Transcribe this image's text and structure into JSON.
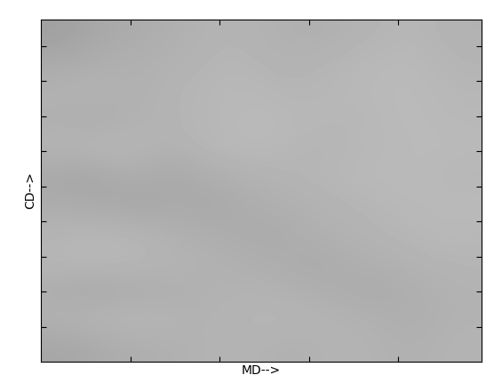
{
  "chart_data": {
    "type": "heatmap",
    "x_label": "MD-->",
    "y_label": "CD-->",
    "xlim": [
      0,
      4.93
    ],
    "ylim": [
      0,
      9.75
    ],
    "xticks": [
      1,
      2,
      3,
      4
    ],
    "yticks": [
      1,
      2,
      3,
      4,
      5,
      6,
      7,
      8,
      9
    ],
    "tick_labels": false,
    "color": "gray",
    "color_range": [
      0,
      255
    ],
    "cells": [
      [
        160,
        165,
        170,
        172,
        175,
        178,
        180,
        178,
        176,
        175,
        178,
        180,
        182,
        180,
        178
      ],
      [
        170,
        172,
        175,
        176,
        178,
        180,
        182,
        180,
        178,
        180,
        182,
        184,
        185,
        182,
        180
      ],
      [
        178,
        180,
        178,
        176,
        180,
        182,
        184,
        183,
        181,
        182,
        184,
        185,
        186,
        184,
        182
      ],
      [
        175,
        172,
        174,
        178,
        180,
        182,
        184,
        186,
        184,
        183,
        182,
        184,
        186,
        185,
        184
      ],
      [
        180,
        182,
        184,
        180,
        178,
        182,
        184,
        185,
        182,
        180,
        182,
        184,
        185,
        186,
        185
      ],
      [
        168,
        165,
        170,
        172,
        168,
        172,
        176,
        178,
        180,
        182,
        184,
        185,
        186,
        184,
        182
      ],
      [
        172,
        170,
        168,
        166,
        170,
        168,
        170,
        174,
        176,
        178,
        180,
        182,
        184,
        185,
        186
      ],
      [
        180,
        182,
        182,
        180,
        176,
        174,
        172,
        170,
        172,
        176,
        178,
        180,
        182,
        184,
        183
      ],
      [
        182,
        184,
        183,
        182,
        180,
        178,
        176,
        174,
        172,
        170,
        174,
        176,
        178,
        180,
        181
      ],
      [
        172,
        168,
        170,
        172,
        174,
        176,
        178,
        178,
        176,
        174,
        172,
        170,
        174,
        176,
        178
      ],
      [
        178,
        180,
        182,
        182,
        180,
        178,
        180,
        182,
        182,
        180,
        178,
        176,
        174,
        176,
        178
      ],
      [
        166,
        168,
        172,
        174,
        176,
        178,
        180,
        178,
        176,
        178,
        180,
        178,
        176,
        178,
        180
      ]
    ]
  }
}
